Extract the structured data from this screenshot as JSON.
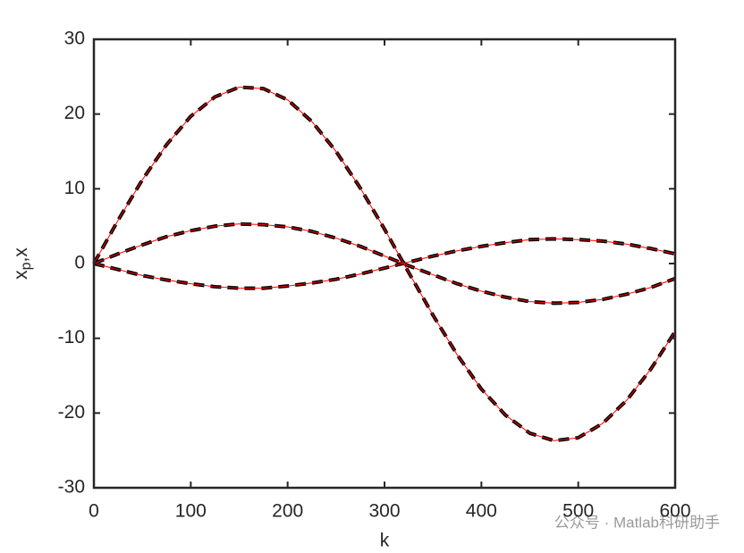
{
  "chart_data": {
    "type": "line",
    "xlabel": "k",
    "ylabel": [
      "x",
      "p",
      ",x"
    ],
    "annotation": "公众号 · Matlab科研助手",
    "x": [
      0,
      25,
      50,
      75,
      100,
      125,
      150,
      175,
      200,
      225,
      250,
      275,
      300,
      325,
      350,
      375,
      400,
      425,
      450,
      475,
      500,
      525,
      550,
      575,
      600
    ],
    "series": [
      {
        "color": "#000000",
        "style": "dashed",
        "width": 4,
        "values": [
          0,
          5.8,
          11.2,
          15.9,
          19.7,
          22.3,
          23.6,
          23.4,
          21.9,
          19.0,
          15.0,
          10.1,
          4.6,
          -1.2,
          -6.9,
          -12.2,
          -16.8,
          -20.3,
          -22.7,
          -23.7,
          -23.3,
          -21.4,
          -18.3,
          -14.1,
          -9.1
        ]
      },
      {
        "color": "#000000",
        "style": "dashed",
        "width": 4,
        "values": [
          0,
          1.3,
          2.5,
          3.6,
          4.4,
          5.0,
          5.3,
          5.2,
          4.9,
          4.3,
          3.4,
          2.3,
          1.0,
          -0.3,
          -1.5,
          -2.7,
          -3.7,
          -4.5,
          -5.1,
          -5.3,
          -5.2,
          -4.8,
          -4.1,
          -3.2,
          -2.0
        ]
      },
      {
        "color": "#000000",
        "style": "dashed",
        "width": 4,
        "values": [
          0,
          -0.8,
          -1.6,
          -2.2,
          -2.7,
          -3.1,
          -3.3,
          -3.3,
          -3.0,
          -2.6,
          -2.1,
          -1.4,
          -0.6,
          0.2,
          1.0,
          1.7,
          2.3,
          2.8,
          3.2,
          3.3,
          3.2,
          3.0,
          2.6,
          2.0,
          1.3
        ]
      },
      {
        "color": "#ff0000",
        "style": "solid",
        "width": 1,
        "values": [
          0,
          5.8,
          11.2,
          15.9,
          19.7,
          22.3,
          23.6,
          23.4,
          21.9,
          19.0,
          15.0,
          10.1,
          4.6,
          -1.2,
          -6.9,
          -12.2,
          -16.8,
          -20.3,
          -22.7,
          -23.7,
          -23.3,
          -21.4,
          -18.3,
          -14.1,
          -9.1
        ]
      },
      {
        "color": "#ff0000",
        "style": "solid",
        "width": 1,
        "values": [
          0,
          1.3,
          2.5,
          3.6,
          4.4,
          5.0,
          5.3,
          5.2,
          4.9,
          4.3,
          3.4,
          2.3,
          1.0,
          -0.3,
          -1.5,
          -2.7,
          -3.7,
          -4.5,
          -5.1,
          -5.3,
          -5.2,
          -4.8,
          -4.1,
          -3.2,
          -2.0
        ]
      },
      {
        "color": "#ff0000",
        "style": "solid",
        "width": 1,
        "values": [
          0,
          -0.8,
          -1.6,
          -2.2,
          -2.7,
          -3.1,
          -3.3,
          -3.3,
          -3.0,
          -2.6,
          -2.1,
          -1.4,
          -0.6,
          0.2,
          1.0,
          1.7,
          2.3,
          2.8,
          3.2,
          3.3,
          3.2,
          3.0,
          2.6,
          2.0,
          1.3
        ]
      }
    ],
    "xlim": [
      0,
      600
    ],
    "xticks": [
      0,
      100,
      200,
      300,
      400,
      500,
      600
    ],
    "ylim": [
      -30,
      30
    ],
    "yticks": [
      -30,
      -20,
      -10,
      0,
      10,
      20,
      30
    ],
    "grid": false
  }
}
